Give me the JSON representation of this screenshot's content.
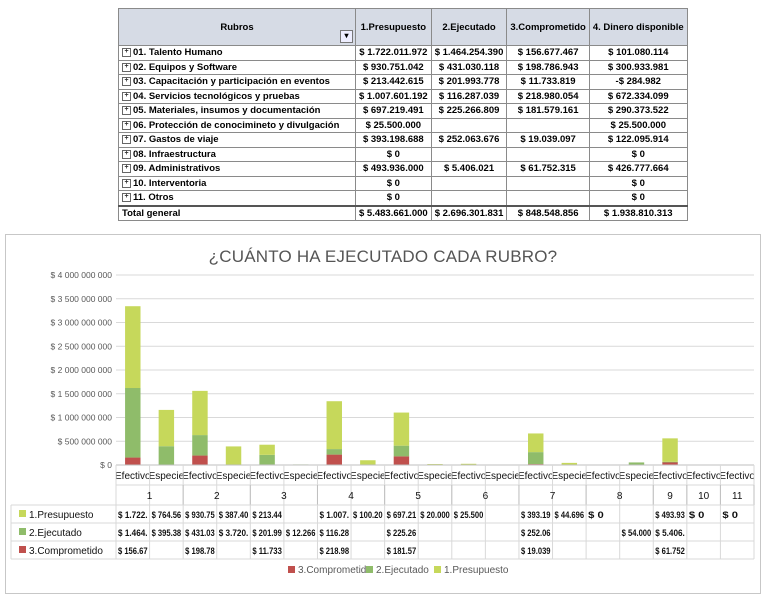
{
  "table": {
    "headers": [
      "Rubros",
      "1.Presupuesto",
      "2.Ejecutado",
      "3.Comprometido",
      "4. Dinero disponible"
    ],
    "filter_icon": "filter-icon",
    "rows": [
      {
        "rubro": "01. Talento Humano",
        "presupuesto": "$ 1.722.011.972",
        "ejecutado": "$ 1.464.254.390",
        "comprometido": "$ 156.677.467",
        "disponible": "$ 101.080.114"
      },
      {
        "rubro": "02. Equipos y Software",
        "presupuesto": "$ 930.751.042",
        "ejecutado": "$ 431.030.118",
        "comprometido": "$ 198.786.943",
        "disponible": "$ 300.933.981"
      },
      {
        "rubro": "03. Capacitación y participación en eventos",
        "presupuesto": "$ 213.442.615",
        "ejecutado": "$ 201.993.778",
        "comprometido": "$ 11.733.819",
        "disponible": "-$ 284.982"
      },
      {
        "rubro": "04. Servicios tecnológicos y pruebas",
        "presupuesto": "$ 1.007.601.192",
        "ejecutado": "$ 116.287.039",
        "comprometido": "$ 218.980.054",
        "disponible": "$ 672.334.099"
      },
      {
        "rubro": "05. Materiales, insumos y documentación",
        "presupuesto": "$ 697.219.491",
        "ejecutado": "$ 225.266.809",
        "comprometido": "$ 181.579.161",
        "disponible": "$ 290.373.522"
      },
      {
        "rubro": "06. Protección de conocimineto y divulgación",
        "presupuesto": "$ 25.500.000",
        "ejecutado": "",
        "comprometido": "",
        "disponible": "$ 25.500.000"
      },
      {
        "rubro": "07. Gastos de viaje",
        "presupuesto": "$ 393.198.688",
        "ejecutado": "$ 252.063.676",
        "comprometido": "$ 19.039.097",
        "disponible": "$ 122.095.914"
      },
      {
        "rubro": "08. Infraestructura",
        "presupuesto": "$ 0",
        "ejecutado": "",
        "comprometido": "",
        "disponible": "$ 0"
      },
      {
        "rubro": "09. Administrativos",
        "presupuesto": "$ 493.936.000",
        "ejecutado": "$ 5.406.021",
        "comprometido": "$ 61.752.315",
        "disponible": "$ 426.777.664"
      },
      {
        "rubro": "10. Interventoria",
        "presupuesto": "$ 0",
        "ejecutado": "",
        "comprometido": "",
        "disponible": "$ 0"
      },
      {
        "rubro": "11. Otros",
        "presupuesto": "$ 0",
        "ejecutado": "",
        "comprometido": "",
        "disponible": "$ 0"
      }
    ],
    "total": {
      "rubro": "Total general",
      "presupuesto": "$ 5.483.661.000",
      "ejecutado": "$ 2.696.301.831",
      "comprometido": "$ 848.548.856",
      "disponible": "$ 1.938.810.313"
    }
  },
  "chart_data": {
    "type": "bar",
    "stacked": true,
    "title": "¿CUÁNTO HA EJECUTADO CADA RUBRO?",
    "y_ticks": [
      "$ 0",
      "$ 500 000 000",
      "$ 1 000 000 000",
      "$ 1 500 000 000",
      "$ 2 000 000 000",
      "$ 2 500 000 000",
      "$ 3 000 000 000",
      "$ 3 500 000 000",
      "$ 4 000 000 000"
    ],
    "ylim": [
      0,
      4000000000
    ],
    "grid": true,
    "legend_position": "bottom",
    "categories": [
      {
        "group": "1",
        "sub": "Efectivo"
      },
      {
        "group": "1",
        "sub": "Especie"
      },
      {
        "group": "2",
        "sub": "Efectivo"
      },
      {
        "group": "2",
        "sub": "Especie"
      },
      {
        "group": "3",
        "sub": "Efectivo"
      },
      {
        "group": "3",
        "sub": "Especie"
      },
      {
        "group": "4",
        "sub": "Efectivo"
      },
      {
        "group": "4",
        "sub": "Especie"
      },
      {
        "group": "5",
        "sub": "Efectivo"
      },
      {
        "group": "5",
        "sub": "Especie"
      },
      {
        "group": "6",
        "sub": "Efectivo"
      },
      {
        "group": "6",
        "sub": "Especie"
      },
      {
        "group": "7",
        "sub": "Efectivo"
      },
      {
        "group": "7",
        "sub": "Especie"
      },
      {
        "group": "8",
        "sub": "Efectivo"
      },
      {
        "group": "8",
        "sub": "Especie"
      },
      {
        "group": "9",
        "sub": "Efectivo"
      },
      {
        "group": "10",
        "sub": "Efectivo"
      },
      {
        "group": "11",
        "sub": "Efectivo"
      }
    ],
    "series": [
      {
        "name": "3.Comprometido",
        "color": "#c0504d",
        "values": [
          156677467,
          0,
          198786943,
          0,
          11733819,
          0,
          218980054,
          0,
          181579161,
          0,
          0,
          0,
          19039097,
          0,
          0,
          0,
          61752315,
          0,
          0
        ],
        "labels": [
          "$ 156.67",
          "",
          "$ 198.78",
          "",
          "$ 11.733",
          "",
          "$ 218.98",
          "",
          "$ 181.57",
          "",
          "",
          "",
          "$ 19.039",
          "",
          "",
          "",
          "$ 61.752",
          "",
          ""
        ]
      },
      {
        "name": "2.Ejecutado",
        "color": "#8fbc6a",
        "values": [
          1464254390,
          395380000,
          431030118,
          3720000,
          201993778,
          12266000,
          116287039,
          0,
          225266809,
          0,
          0,
          0,
          252063676,
          0,
          0,
          54000000,
          5406021,
          0,
          0
        ],
        "labels": [
          "$ 1.464.",
          "$ 395.38",
          "$ 431.03",
          "$ 3.720.",
          "$ 201.99",
          "$ 12.266",
          "$ 116.28",
          "",
          "$ 225.26",
          "",
          "",
          "",
          "$ 252.06",
          "",
          "",
          "$ 54.000",
          "$ 5.406.",
          "",
          ""
        ]
      },
      {
        "name": "1.Presupuesto",
        "color": "#c6d85b",
        "values": [
          1722011972,
          764560000,
          930751042,
          387400000,
          213442615,
          0,
          1007601192,
          100200000,
          697219491,
          20000000,
          25500000,
          0,
          393198688,
          44696000,
          0,
          0,
          493936000,
          0,
          0
        ],
        "labels": [
          "$ 1.722.",
          "$ 764.56",
          "$ 930.75",
          "$ 387.40",
          "$ 213.44",
          "",
          "$ 1.007.",
          "$ 100.20",
          "$ 697.21",
          "$ 20.000",
          "$ 25.500",
          "",
          "$ 393.19",
          "$ 44.696",
          "$ 0",
          "",
          "$ 493.93",
          "$ 0",
          "$ 0"
        ]
      }
    ]
  }
}
